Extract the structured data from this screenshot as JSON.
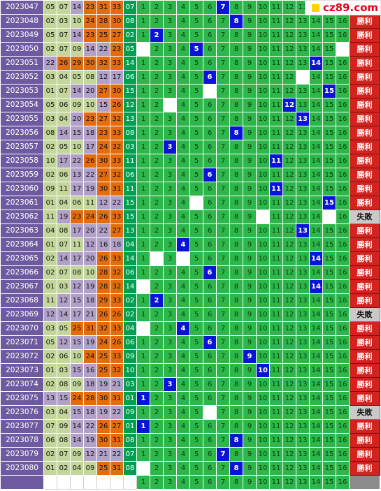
{
  "logo": {
    "text": "cz89.com"
  },
  "result_labels": {
    "win": "勝利",
    "lose": "失敗"
  },
  "rows": [
    {
      "issue": "2023047",
      "nums": [
        "05",
        "07",
        "14",
        "23",
        "31",
        "33"
      ],
      "sum": "07",
      "blue": 7,
      "result": "win",
      "missing": []
    },
    {
      "issue": "2023048",
      "nums": [
        "02",
        "03",
        "10",
        "24",
        "28",
        "30"
      ],
      "sum": "08",
      "blue": 8,
      "result": "win",
      "missing": []
    },
    {
      "issue": "2023049",
      "nums": [
        "05",
        "07",
        "14",
        "23",
        "25",
        "27"
      ],
      "sum": "02",
      "blue": 2,
      "result": "win",
      "missing": []
    },
    {
      "issue": "2023050",
      "nums": [
        "02",
        "07",
        "09",
        "14",
        "22",
        "23"
      ],
      "sum": "05",
      "blue": 5,
      "result": "win",
      "missing": [
        1,
        16
      ]
    },
    {
      "issue": "2023051",
      "nums": [
        "22",
        "26",
        "29",
        "30",
        "32",
        "33"
      ],
      "sum": "14",
      "blue": 14,
      "result": "win",
      "missing": []
    },
    {
      "issue": "2023052",
      "nums": [
        "03",
        "04",
        "05",
        "08",
        "12",
        "17"
      ],
      "sum": "06",
      "blue": 6,
      "result": "win",
      "missing": [
        13
      ]
    },
    {
      "issue": "2023053",
      "nums": [
        "01",
        "07",
        "14",
        "20",
        "27",
        "30"
      ],
      "sum": "15",
      "blue": 15,
      "result": "win",
      "missing": [
        6
      ]
    },
    {
      "issue": "2023054",
      "nums": [
        "05",
        "06",
        "09",
        "10",
        "15",
        "26"
      ],
      "sum": "12",
      "blue": 12,
      "result": "win",
      "missing": [
        3
      ]
    },
    {
      "issue": "2023055",
      "nums": [
        "03",
        "04",
        "20",
        "23",
        "27",
        "32"
      ],
      "sum": "13",
      "blue": 13,
      "result": "win",
      "missing": []
    },
    {
      "issue": "2023056",
      "nums": [
        "08",
        "14",
        "15",
        "18",
        "23",
        "33"
      ],
      "sum": "08",
      "blue": 8,
      "result": "win",
      "missing": []
    },
    {
      "issue": "2023057",
      "nums": [
        "02",
        "05",
        "10",
        "17",
        "24",
        "32"
      ],
      "sum": "03",
      "blue": 3,
      "result": "win",
      "missing": []
    },
    {
      "issue": "2023058",
      "nums": [
        "10",
        "17",
        "22",
        "26",
        "30",
        "33"
      ],
      "sum": "11",
      "blue": 11,
      "result": "win",
      "missing": []
    },
    {
      "issue": "2023059",
      "nums": [
        "02",
        "06",
        "13",
        "22",
        "27",
        "32"
      ],
      "sum": "06",
      "blue": 6,
      "result": "win",
      "missing": []
    },
    {
      "issue": "2023060",
      "nums": [
        "09",
        "11",
        "17",
        "19",
        "30",
        "31"
      ],
      "sum": "11",
      "blue": 11,
      "result": "win",
      "missing": []
    },
    {
      "issue": "2023061",
      "nums": [
        "01",
        "04",
        "06",
        "11",
        "12",
        "22"
      ],
      "sum": "15",
      "blue": 15,
      "result": "win",
      "missing": [
        5
      ]
    },
    {
      "issue": "2023062",
      "nums": [
        "11",
        "19",
        "23",
        "24",
        "26",
        "33"
      ],
      "sum": "15",
      "blue": 0,
      "result": "lose",
      "missing": [
        10,
        15
      ]
    },
    {
      "issue": "2023063",
      "nums": [
        "04",
        "08",
        "17",
        "20",
        "22",
        "27"
      ],
      "sum": "13",
      "blue": 13,
      "result": "win",
      "missing": []
    },
    {
      "issue": "2023064",
      "nums": [
        "01",
        "07",
        "11",
        "12",
        "16",
        "18"
      ],
      "sum": "04",
      "blue": 4,
      "result": "win",
      "missing": []
    },
    {
      "issue": "2023065",
      "nums": [
        "02",
        "14",
        "17",
        "20",
        "26",
        "33"
      ],
      "sum": "14",
      "blue": 14,
      "result": "win",
      "missing": [
        2,
        4
      ]
    },
    {
      "issue": "2023066",
      "nums": [
        "02",
        "07",
        "08",
        "10",
        "28",
        "32"
      ],
      "sum": "06",
      "blue": 6,
      "result": "win",
      "missing": []
    },
    {
      "issue": "2023067",
      "nums": [
        "01",
        "03",
        "12",
        "19",
        "28",
        "32"
      ],
      "sum": "14",
      "blue": 14,
      "result": "win",
      "missing": [
        1
      ]
    },
    {
      "issue": "2023068",
      "nums": [
        "11",
        "12",
        "15",
        "18",
        "29",
        "33"
      ],
      "sum": "02",
      "blue": 2,
      "result": "win",
      "missing": []
    },
    {
      "issue": "2023069",
      "nums": [
        "12",
        "14",
        "17",
        "21",
        "26",
        "26"
      ],
      "sum": "02",
      "blue": 0,
      "result": "lose",
      "missing": []
    },
    {
      "issue": "2023070",
      "nums": [
        "03",
        "05",
        "25",
        "31",
        "32",
        "33"
      ],
      "sum": "04",
      "blue": 4,
      "result": "win",
      "missing": [
        1
      ]
    },
    {
      "issue": "2023071",
      "nums": [
        "05",
        "12",
        "15",
        "19",
        "24",
        "26"
      ],
      "sum": "06",
      "blue": 6,
      "result": "win",
      "missing": []
    },
    {
      "issue": "2023072",
      "nums": [
        "02",
        "06",
        "10",
        "24",
        "25",
        "33"
      ],
      "sum": "09",
      "blue": 9,
      "result": "win",
      "missing": []
    },
    {
      "issue": "2023073",
      "nums": [
        "01",
        "03",
        "15",
        "16",
        "25",
        "32"
      ],
      "sum": "10",
      "blue": 10,
      "result": "win",
      "missing": []
    },
    {
      "issue": "2023074",
      "nums": [
        "02",
        "08",
        "09",
        "18",
        "19",
        "21"
      ],
      "sum": "03",
      "blue": 3,
      "result": "win",
      "missing": []
    },
    {
      "issue": "2023075",
      "nums": [
        "13",
        "15",
        "24",
        "28",
        "30",
        "31"
      ],
      "sum": "01",
      "blue": 1,
      "result": "win",
      "missing": []
    },
    {
      "issue": "2023076",
      "nums": [
        "03",
        "04",
        "15",
        "18",
        "19",
        "22"
      ],
      "sum": "09",
      "blue": 0,
      "result": "lose",
      "missing": [
        6
      ]
    },
    {
      "issue": "2023077",
      "nums": [
        "07",
        "09",
        "14",
        "22",
        "26",
        "27"
      ],
      "sum": "01",
      "blue": 1,
      "result": "win",
      "missing": []
    },
    {
      "issue": "2023078",
      "nums": [
        "06",
        "08",
        "14",
        "19",
        "30",
        "31"
      ],
      "sum": "08",
      "blue": 8,
      "result": "win",
      "missing": []
    },
    {
      "issue": "2023079",
      "nums": [
        "02",
        "07",
        "09",
        "12",
        "21",
        "22"
      ],
      "sum": "07",
      "blue": 7,
      "result": "win",
      "missing": []
    },
    {
      "issue": "2023080",
      "nums": [
        "01",
        "02",
        "04",
        "09",
        "25",
        "31"
      ],
      "sum": "08",
      "blue": 8,
      "result": "win",
      "missing": [
        1
      ]
    }
  ],
  "final_row": {
    "numbers": [
      1,
      2,
      3,
      4,
      5,
      6,
      7,
      8,
      9,
      10,
      11,
      12,
      13,
      14,
      15,
      16
    ]
  },
  "colors": {
    "issue_bg": "#6e5aa0",
    "olive": "#c3d69b",
    "lavender": "#b1a0c7",
    "orange": "#e46c0a",
    "grid_green": "#2db64a",
    "hit_blue": "#0a14d8",
    "win_red": "#d2231f",
    "lose_gray": "#c9c9c9"
  }
}
